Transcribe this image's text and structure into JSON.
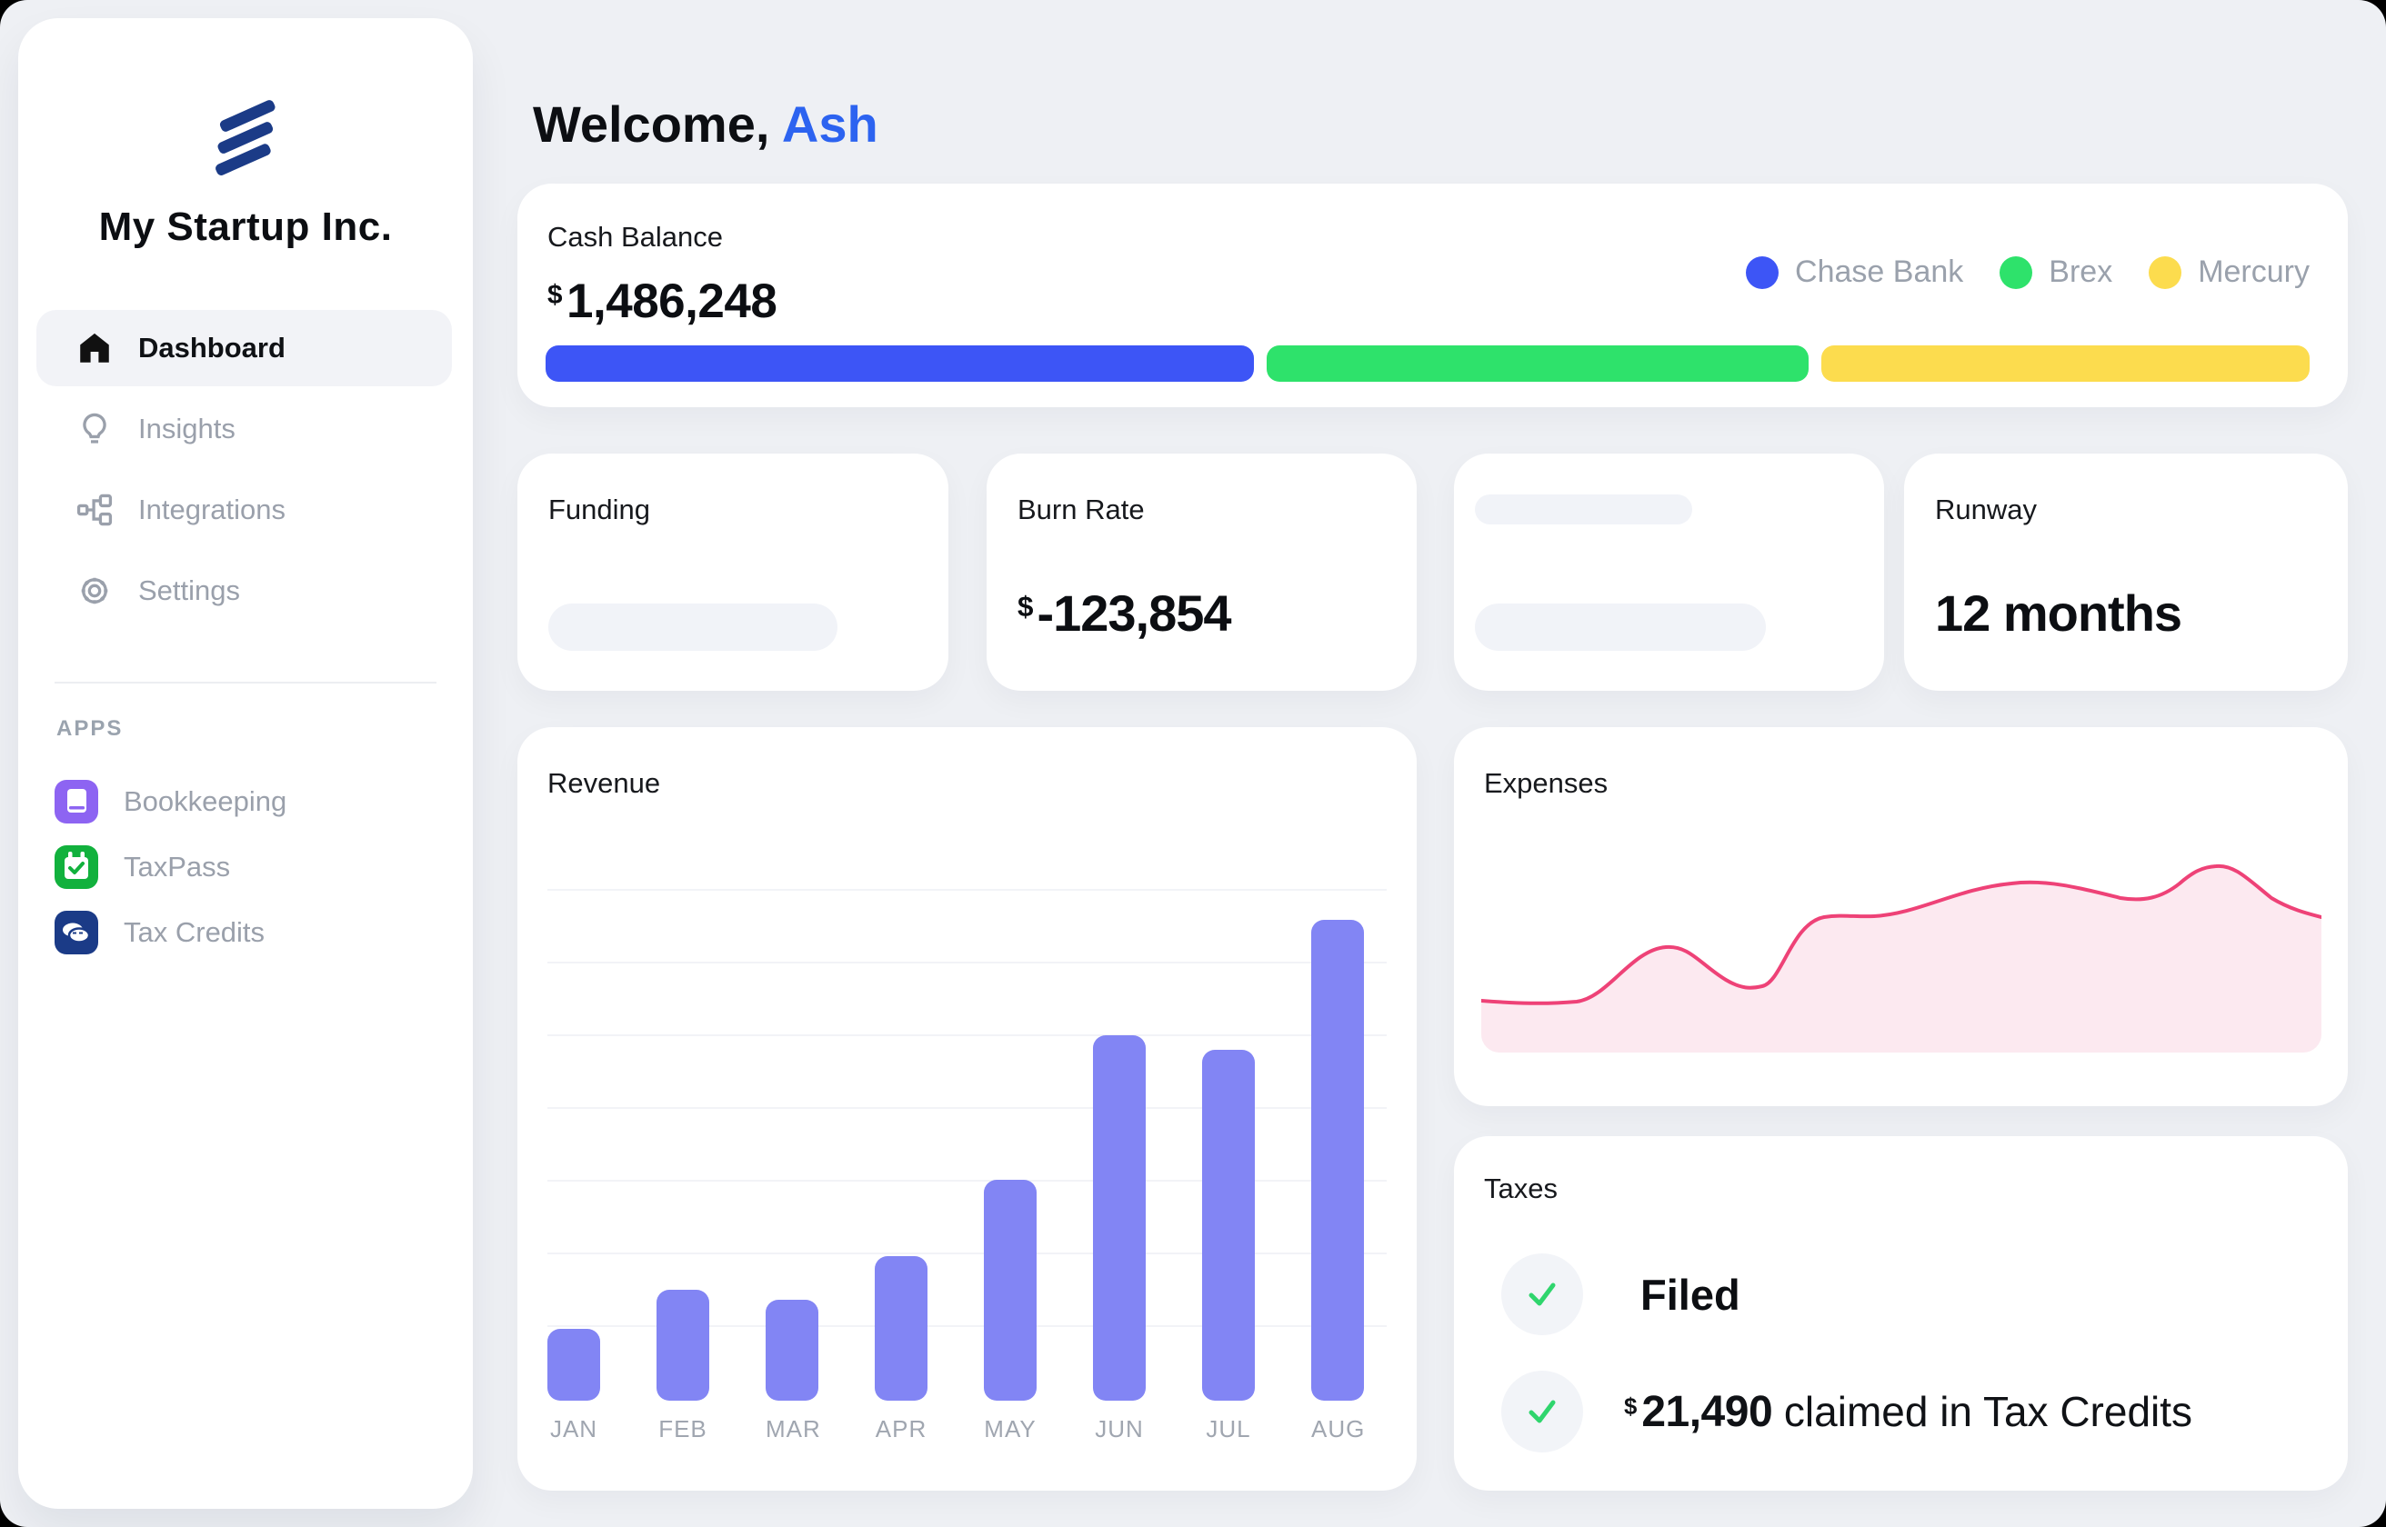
{
  "sidebar": {
    "company_name": "My Startup Inc.",
    "logo_color": "#1b3b87",
    "nav_items": [
      {
        "label": "Dashboard",
        "icon": "home",
        "active": true
      },
      {
        "label": "Insights",
        "icon": "lightbulb",
        "active": false
      },
      {
        "label": "Integrations",
        "icon": "integrations",
        "active": false
      },
      {
        "label": "Settings",
        "icon": "gear",
        "active": false
      }
    ],
    "apps_section_label": "APPS",
    "apps": [
      {
        "label": "Bookkeeping",
        "icon": "book-icon",
        "color": "#8d64f2"
      },
      {
        "label": "TaxPass",
        "icon": "calendar-check-icon",
        "color": "#12b13d"
      },
      {
        "label": "Tax Credits",
        "icon": "coins-icon",
        "color": "#1b3b87"
      }
    ]
  },
  "header": {
    "greeting": "Welcome,",
    "username": "Ash",
    "username_color": "#2c63f0"
  },
  "cash_balance": {
    "title": "Cash Balance",
    "currency": "$",
    "amount": "1,486,248",
    "accounts": [
      {
        "name": "Chase Bank",
        "color": "#3d55f6",
        "share_pct": 40.2
      },
      {
        "name": "Brex",
        "color": "#2ee26b",
        "share_pct": 30.8
      },
      {
        "name": "Mercury",
        "color": "#fcdc4e",
        "share_pct": 27.7
      }
    ]
  },
  "stat_cards": {
    "funding": {
      "title": "Funding"
    },
    "burn_rate": {
      "title": "Burn Rate",
      "currency": "$",
      "amount": "-123,854"
    },
    "runway": {
      "title": "Runway",
      "value": "12 months"
    }
  },
  "chart_data": [
    {
      "type": "bar",
      "title": "Revenue",
      "categories": [
        "JAN",
        "FEB",
        "MAR",
        "APR",
        "MAY",
        "JUN",
        "JUL",
        "AUG"
      ],
      "values": [
        15,
        23,
        21,
        30,
        46,
        76,
        73,
        100
      ],
      "unit": "percent of max bar (no numeric axis labels shown)",
      "xlabel": "",
      "ylabel": "",
      "ylim": [
        0,
        100
      ],
      "grid": true,
      "legend_position": "none",
      "bar_color": "#8285f4"
    },
    {
      "type": "area",
      "title": "Expenses",
      "x": [
        0,
        8,
        22,
        33,
        42,
        46,
        63,
        76,
        87,
        100
      ],
      "values": [
        22,
        20,
        45,
        28,
        58,
        58,
        72,
        66,
        79,
        58
      ],
      "unit": "percent of chart height (no numeric axis labels shown)",
      "xlabel": "",
      "ylabel": "",
      "ylim": [
        0,
        100
      ],
      "grid": false,
      "legend_position": "none",
      "line_color": "#ee4277",
      "fill_color": "#fce9f0"
    }
  ],
  "taxes": {
    "title": "Taxes",
    "check_color": "#2fd56d",
    "items": [
      {
        "status_icon": "check",
        "label": "Filed"
      },
      {
        "status_icon": "check",
        "currency": "$",
        "amount": "21,490",
        "label_suffix": "claimed in Tax Credits"
      }
    ]
  }
}
